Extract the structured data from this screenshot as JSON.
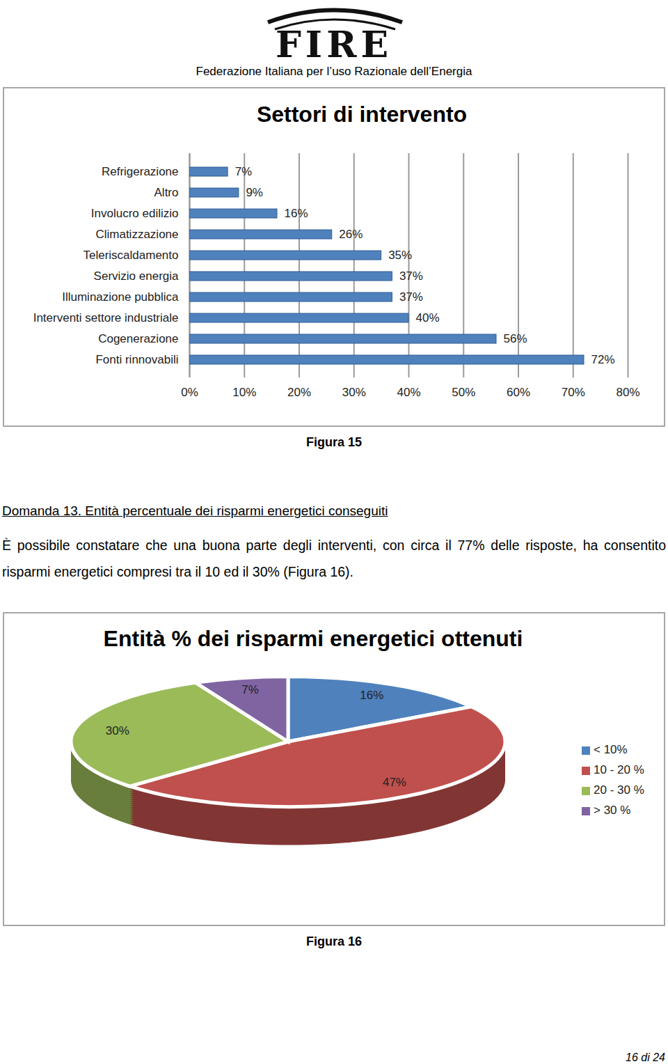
{
  "header": {
    "logo": "FIRE",
    "organization": "Federazione Italiana per l’uso Razionale dell’Energia"
  },
  "chart_data": [
    {
      "type": "bar",
      "title": "Settori di intervento",
      "orientation": "horizontal",
      "categories": [
        "Refrigerazione",
        "Altro",
        "Involucro edilizio",
        "Climatizzazione",
        "Teleriscaldamento",
        "Servizio energia",
        "Illuminazione pubblica",
        "Interventi settore industriale",
        "Cogenerazione",
        "Fonti rinnovabili"
      ],
      "values": [
        7,
        9,
        16,
        26,
        35,
        37,
        37,
        40,
        56,
        72
      ],
      "value_labels": [
        "7%",
        "9%",
        "16%",
        "26%",
        "35%",
        "37%",
        "37%",
        "40%",
        "56%",
        "72%"
      ],
      "data_labels": true,
      "color": "#4f81bd",
      "xlim": [
        0,
        80
      ],
      "xticks": [
        {
          "value": 0,
          "label": "0%"
        },
        {
          "value": 10,
          "label": "10%"
        },
        {
          "value": 20,
          "label": "20%"
        },
        {
          "value": 30,
          "label": "30%"
        },
        {
          "value": 40,
          "label": "40%"
        },
        {
          "value": 50,
          "label": "50%"
        },
        {
          "value": 60,
          "label": "60%"
        },
        {
          "value": 70,
          "label": "70%"
        },
        {
          "value": 80,
          "label": "80%"
        }
      ],
      "grid": true
    },
    {
      "type": "pie",
      "title": "Entità % dei risparmi energetici ottenuti",
      "categories": [
        "< 10%",
        "10 - 20 %",
        "20 - 30 %",
        "> 30 %"
      ],
      "values": [
        16,
        47,
        30,
        7
      ],
      "value_labels": [
        "16%",
        "47%",
        "30%",
        "7%"
      ],
      "data_labels": true,
      "colors": [
        "#4f81bd",
        "#c0504d",
        "#9bbb59",
        "#8064a2"
      ],
      "legend": "right"
    }
  ],
  "captions": [
    "Figura 15",
    "Figura 16"
  ],
  "section": {
    "heading": "Domanda 13. Entità percentuale dei risparmi energetici conseguiti",
    "paragraph": "È possibile constatare che una buona parte degli interventi, con circa il 77% delle risposte, ha consentito risparmi energetici compresi tra il 10 ed il 30% (Figura 16)."
  },
  "footer": {
    "page": "16 di 24"
  }
}
